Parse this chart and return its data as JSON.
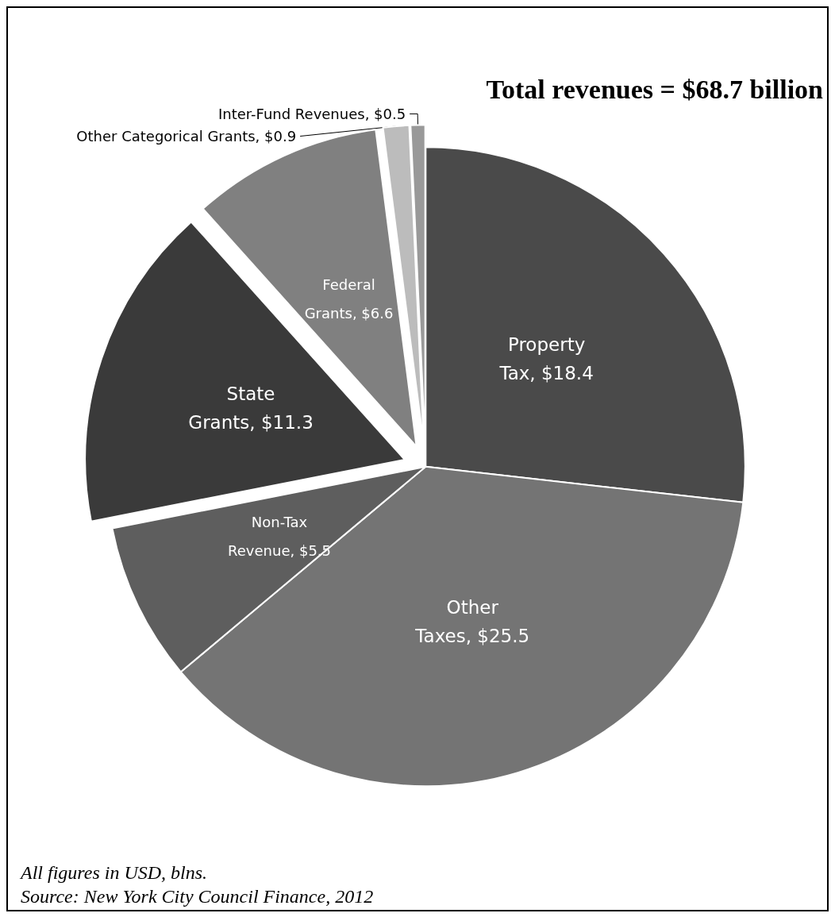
{
  "chart_data": {
    "type": "pie",
    "title": "Total revenues = $68.7 billion",
    "categories": [
      "Property Tax",
      "Other Taxes",
      "Non-Tax Revenue",
      "State Grants",
      "Federal Grants",
      "Other Categorical Grants",
      "Inter-Fund Revenues"
    ],
    "values": [
      18.4,
      25.5,
      5.5,
      11.3,
      6.6,
      0.9,
      0.5
    ],
    "value_labels": [
      "$18.4",
      "$25.5",
      "$5.5",
      "$11.3",
      "$6.6",
      "$0.9",
      "$0.5"
    ],
    "colors": [
      "#4a4a4a",
      "#747474",
      "#5e5e5e",
      "#3a3a3a",
      "#808080",
      "#bcbcbc",
      "#999999"
    ],
    "legend": false,
    "annotations": [
      "All figures in USD, blns.",
      "Source: New York City Council Finance, 2012"
    ]
  }
}
